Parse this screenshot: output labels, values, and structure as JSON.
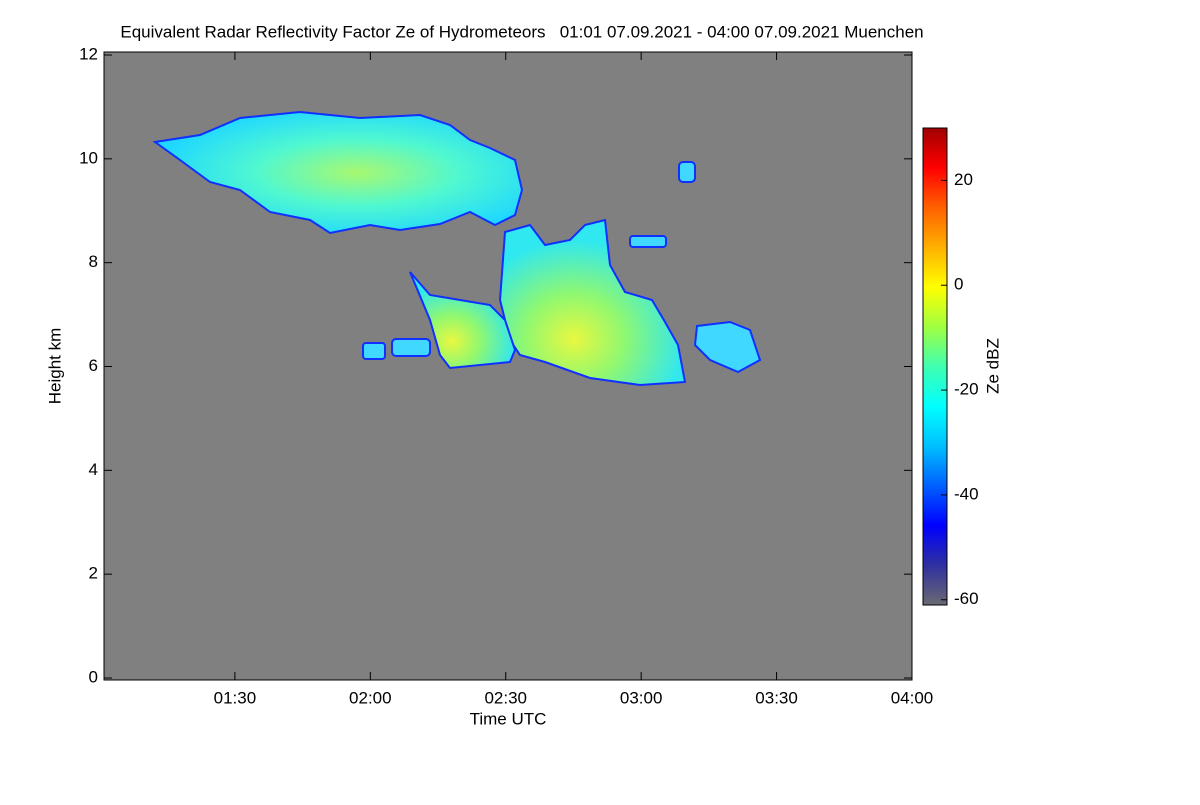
{
  "chart_data": {
    "type": "heatmap",
    "title": "Equivalent Radar Reflectivity Factor Ze of Hydrometeors   01:01 07.09.2021 - 04:00 07.09.2021 Muenchen",
    "x_label": "Time UTC",
    "y_label": "Height km",
    "xlim": [
      61,
      240
    ],
    "xticks": [
      {
        "value": 90,
        "label": "01:30"
      },
      {
        "value": 120,
        "label": "02:00"
      },
      {
        "value": 150,
        "label": "02:30"
      },
      {
        "value": 180,
        "label": "03:00"
      },
      {
        "value": 210,
        "label": "03:30"
      },
      {
        "value": 240,
        "label": "04:00"
      }
    ],
    "ylim": [
      0,
      12
    ],
    "yticks": [
      0,
      2,
      4,
      6,
      8,
      10,
      12
    ],
    "background": "#808080",
    "colorbar": {
      "label": "Ze dBZ",
      "lim": [
        -61,
        30
      ],
      "ticks": [
        -60,
        -40,
        -20,
        0,
        20
      ],
      "colors": [
        "#6a6a72",
        "#3030a0",
        "#0000ff",
        "#0060ff",
        "#00c0ff",
        "#00ffff",
        "#40ffb0",
        "#a0ff40",
        "#ffff00",
        "#ffb000",
        "#ff6000",
        "#ff0000",
        "#a00000"
      ]
    }
  }
}
